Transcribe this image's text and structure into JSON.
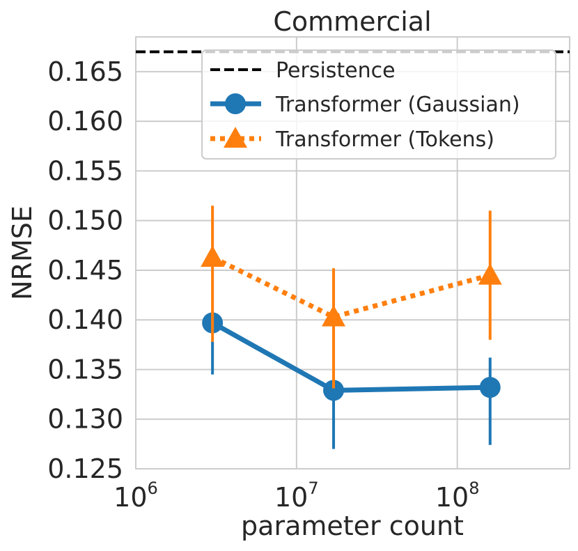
{
  "chart_data": {
    "type": "line",
    "title": "Commercial",
    "xlabel": "parameter count",
    "ylabel": "NRMSE",
    "xscale": "log",
    "xlim": [
      1000000,
      500000000
    ],
    "ylim": [
      0.125,
      0.1685
    ],
    "grid": true,
    "legend_position": "top-right",
    "x_ticks": [
      {
        "value": 1000000,
        "base": "10",
        "exp": "6"
      },
      {
        "value": 10000000,
        "base": "10",
        "exp": "7"
      },
      {
        "value": 100000000,
        "base": "10",
        "exp": "8"
      }
    ],
    "y_ticks": [
      {
        "value": 0.125,
        "label": "0.125"
      },
      {
        "value": 0.13,
        "label": "0.130"
      },
      {
        "value": 0.135,
        "label": "0.135"
      },
      {
        "value": 0.14,
        "label": "0.140"
      },
      {
        "value": 0.145,
        "label": "0.145"
      },
      {
        "value": 0.15,
        "label": "0.150"
      },
      {
        "value": 0.155,
        "label": "0.155"
      },
      {
        "value": 0.16,
        "label": "0.160"
      },
      {
        "value": 0.165,
        "label": "0.165"
      }
    ],
    "reference_lines": [
      {
        "name": "Persistence",
        "y": 0.167,
        "color": "#000000",
        "style": "dashed"
      }
    ],
    "series": [
      {
        "name": "Transformer (Gaussian)",
        "color": "#1f77b4",
        "marker": "circle",
        "line_style": "solid",
        "x": [
          3000000,
          17000000,
          160000000
        ],
        "y": [
          0.1397,
          0.1329,
          0.1332
        ],
        "err_low": [
          0.1345,
          0.127,
          0.1274
        ],
        "err_high": [
          0.1378,
          0.133,
          0.1362
        ]
      },
      {
        "name": "Transformer (Tokens)",
        "color": "#ff7f0e",
        "marker": "triangle",
        "line_style": "dotted",
        "x": [
          3000000,
          17000000,
          160000000
        ],
        "y": [
          0.1463,
          0.1403,
          0.1445
        ],
        "err_low": [
          0.1378,
          0.1331,
          0.138
        ],
        "err_high": [
          0.1515,
          0.1452,
          0.151
        ]
      }
    ]
  }
}
